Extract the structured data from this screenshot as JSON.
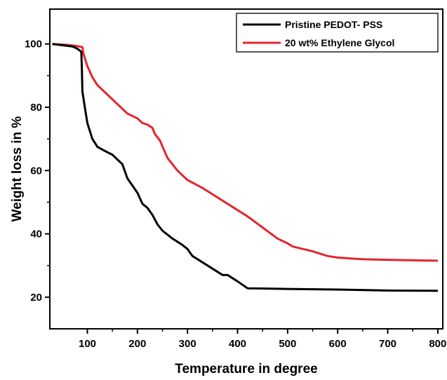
{
  "chart_data": {
    "type": "line",
    "title": "",
    "xlabel": "Temperature in degree",
    "ylabel": "Weight loss in %",
    "xlim": [
      25,
      810
    ],
    "ylim": [
      10,
      111
    ],
    "x_ticks": [
      100,
      200,
      300,
      400,
      500,
      600,
      700,
      800
    ],
    "y_ticks": [
      20,
      40,
      60,
      80,
      100
    ],
    "grid": false,
    "legend_position": "top-right",
    "series": [
      {
        "name": "Pristine PEDOT- PSS",
        "color": "#000000",
        "points": [
          [
            30,
            100
          ],
          [
            50,
            99.6
          ],
          [
            70,
            99.2
          ],
          [
            80,
            98.5
          ],
          [
            88,
            97.5
          ],
          [
            89,
            92
          ],
          [
            90,
            85
          ],
          [
            95,
            80
          ],
          [
            100,
            75
          ],
          [
            110,
            70
          ],
          [
            120,
            67.5
          ],
          [
            135,
            66.2
          ],
          [
            150,
            65
          ],
          [
            160,
            63.5
          ],
          [
            170,
            62
          ],
          [
            180,
            57.5
          ],
          [
            200,
            53
          ],
          [
            210,
            49.5
          ],
          [
            220,
            48.2
          ],
          [
            230,
            46
          ],
          [
            240,
            43
          ],
          [
            250,
            41
          ],
          [
            270,
            38.5
          ],
          [
            290,
            36.5
          ],
          [
            300,
            35.2
          ],
          [
            310,
            33
          ],
          [
            330,
            31
          ],
          [
            350,
            29
          ],
          [
            370,
            27
          ],
          [
            380,
            27
          ],
          [
            400,
            25
          ],
          [
            420,
            22.8
          ],
          [
            500,
            22.6
          ],
          [
            600,
            22.4
          ],
          [
            700,
            22.1
          ],
          [
            800,
            22
          ]
        ]
      },
      {
        "name": "20 wt% Ethylene Glycol",
        "color": "#e5242c",
        "points": [
          [
            30,
            100
          ],
          [
            60,
            99.7
          ],
          [
            80,
            99.3
          ],
          [
            90,
            99
          ],
          [
            92,
            97
          ],
          [
            100,
            93
          ],
          [
            110,
            89.5
          ],
          [
            120,
            87
          ],
          [
            150,
            82.5
          ],
          [
            180,
            78
          ],
          [
            200,
            76.5
          ],
          [
            210,
            75
          ],
          [
            220,
            74.5
          ],
          [
            230,
            73.5
          ],
          [
            235,
            71.5
          ],
          [
            245,
            69.5
          ],
          [
            260,
            64
          ],
          [
            280,
            60
          ],
          [
            300,
            57
          ],
          [
            330,
            54.5
          ],
          [
            360,
            51.5
          ],
          [
            390,
            48.5
          ],
          [
            420,
            45.5
          ],
          [
            450,
            42
          ],
          [
            480,
            38.5
          ],
          [
            500,
            37
          ],
          [
            510,
            36
          ],
          [
            550,
            34.5
          ],
          [
            580,
            33
          ],
          [
            600,
            32.5
          ],
          [
            650,
            32
          ],
          [
            700,
            31.8
          ],
          [
            800,
            31.5
          ]
        ]
      }
    ]
  }
}
